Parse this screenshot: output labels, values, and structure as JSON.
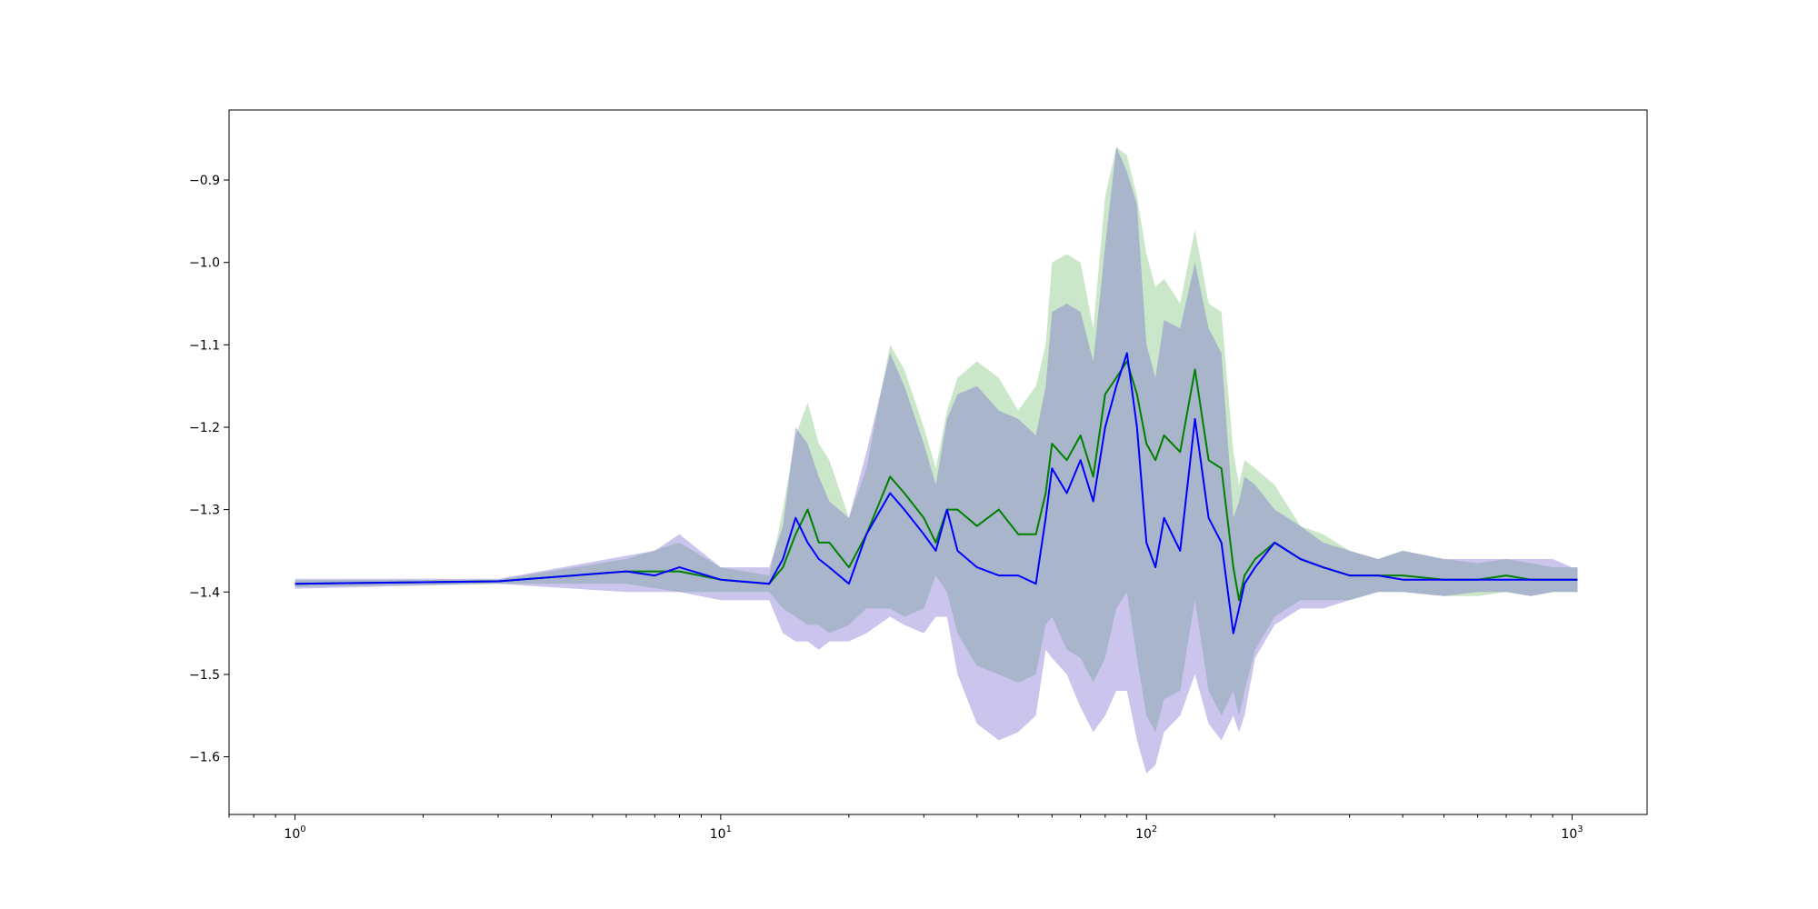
{
  "chart_data": {
    "type": "line",
    "title": "",
    "xlabel": "",
    "ylabel": "",
    "x_scale": "log",
    "xlim": [
      0.7,
      1500
    ],
    "ylim": [
      -1.67,
      -0.815
    ],
    "grid": false,
    "legend": "none",
    "x_ticks": [
      {
        "value": 1,
        "base": "10",
        "exp": "0"
      },
      {
        "value": 10,
        "base": "10",
        "exp": "1"
      },
      {
        "value": 100,
        "base": "10",
        "exp": "2"
      },
      {
        "value": 1000,
        "base": "10",
        "exp": "3"
      }
    ],
    "y_ticks": [
      {
        "value": -0.9,
        "label": "−0.9"
      },
      {
        "value": -1.0,
        "label": "−1.0"
      },
      {
        "value": -1.1,
        "label": "−1.1"
      },
      {
        "value": -1.2,
        "label": "−1.2"
      },
      {
        "value": -1.3,
        "label": "−1.3"
      },
      {
        "value": -1.4,
        "label": "−1.4"
      },
      {
        "value": -1.5,
        "label": "−1.5"
      },
      {
        "value": -1.6,
        "label": "−1.6"
      }
    ],
    "series": [
      {
        "key": "green",
        "color": "#008000",
        "band_color": "#2ca02c",
        "band_opacity": 0.25,
        "x": [
          1,
          3,
          6,
          8,
          10,
          13,
          14,
          15,
          16,
          17,
          18,
          20,
          22,
          25,
          27,
          30,
          32,
          34,
          36,
          40,
          45,
          50,
          55,
          58,
          60,
          65,
          70,
          75,
          80,
          85,
          90,
          95,
          100,
          105,
          110,
          120,
          130,
          140,
          150,
          160,
          165,
          170,
          180,
          200,
          230,
          260,
          300,
          350,
          400,
          500,
          600,
          700,
          800,
          900,
          1000,
          1030
        ],
        "mean": [
          -1.39,
          -1.387,
          -1.375,
          -1.375,
          -1.385,
          -1.39,
          -1.37,
          -1.33,
          -1.3,
          -1.34,
          -1.34,
          -1.37,
          -1.33,
          -1.26,
          -1.28,
          -1.31,
          -1.34,
          -1.3,
          -1.3,
          -1.32,
          -1.3,
          -1.33,
          -1.33,
          -1.28,
          -1.22,
          -1.24,
          -1.21,
          -1.26,
          -1.16,
          -1.14,
          -1.12,
          -1.16,
          -1.22,
          -1.24,
          -1.21,
          -1.23,
          -1.13,
          -1.24,
          -1.25,
          -1.37,
          -1.41,
          -1.38,
          -1.36,
          -1.34,
          -1.36,
          -1.37,
          -1.38,
          -1.38,
          -1.38,
          -1.385,
          -1.385,
          -1.38,
          -1.385,
          -1.385,
          -1.385,
          -1.385
        ],
        "upper": [
          -1.386,
          -1.385,
          -1.36,
          -1.34,
          -1.37,
          -1.38,
          -1.3,
          -1.21,
          -1.17,
          -1.22,
          -1.24,
          -1.31,
          -1.25,
          -1.1,
          -1.13,
          -1.2,
          -1.25,
          -1.18,
          -1.14,
          -1.12,
          -1.14,
          -1.18,
          -1.15,
          -1.1,
          -1.0,
          -0.99,
          -1.0,
          -1.08,
          -0.92,
          -0.86,
          -0.87,
          -0.92,
          -0.99,
          -1.03,
          -1.02,
          -1.05,
          -0.96,
          -1.05,
          -1.06,
          -1.23,
          -1.27,
          -1.24,
          -1.25,
          -1.27,
          -1.32,
          -1.33,
          -1.35,
          -1.36,
          -1.35,
          -1.36,
          -1.365,
          -1.36,
          -1.365,
          -1.37,
          -1.37,
          -1.37
        ],
        "lower": [
          -1.394,
          -1.39,
          -1.39,
          -1.4,
          -1.4,
          -1.4,
          -1.42,
          -1.43,
          -1.44,
          -1.44,
          -1.45,
          -1.44,
          -1.42,
          -1.42,
          -1.43,
          -1.42,
          -1.38,
          -1.4,
          -1.45,
          -1.49,
          -1.5,
          -1.51,
          -1.5,
          -1.44,
          -1.43,
          -1.47,
          -1.48,
          -1.51,
          -1.48,
          -1.42,
          -1.4,
          -1.48,
          -1.55,
          -1.57,
          -1.53,
          -1.52,
          -1.41,
          -1.52,
          -1.55,
          -1.52,
          -1.55,
          -1.52,
          -1.47,
          -1.43,
          -1.41,
          -1.41,
          -1.41,
          -1.4,
          -1.4,
          -1.405,
          -1.405,
          -1.4,
          -1.405,
          -1.4,
          -1.4,
          -1.4
        ]
      },
      {
        "key": "blue",
        "color": "#0000ff",
        "band_color": "#6a5acd",
        "band_opacity": 0.35,
        "x": [
          1,
          3,
          6,
          7,
          8,
          10,
          13,
          14,
          15,
          16,
          17,
          18,
          20,
          22,
          25,
          27,
          30,
          32,
          34,
          36,
          40,
          45,
          50,
          55,
          58,
          60,
          65,
          70,
          75,
          80,
          85,
          90,
          95,
          100,
          105,
          110,
          120,
          130,
          140,
          150,
          160,
          165,
          170,
          180,
          200,
          230,
          260,
          300,
          350,
          400,
          500,
          600,
          700,
          800,
          900,
          1000,
          1030
        ],
        "mean": [
          -1.39,
          -1.387,
          -1.375,
          -1.38,
          -1.37,
          -1.385,
          -1.39,
          -1.36,
          -1.31,
          -1.34,
          -1.36,
          -1.37,
          -1.39,
          -1.33,
          -1.28,
          -1.3,
          -1.33,
          -1.35,
          -1.3,
          -1.35,
          -1.37,
          -1.38,
          -1.38,
          -1.39,
          -1.31,
          -1.25,
          -1.28,
          -1.24,
          -1.29,
          -1.2,
          -1.15,
          -1.11,
          -1.2,
          -1.34,
          -1.37,
          -1.31,
          -1.35,
          -1.19,
          -1.31,
          -1.34,
          -1.45,
          -1.42,
          -1.39,
          -1.37,
          -1.34,
          -1.36,
          -1.37,
          -1.38,
          -1.38,
          -1.385,
          -1.385,
          -1.385,
          -1.385,
          -1.385,
          -1.385,
          -1.385,
          -1.385
        ],
        "upper": [
          -1.384,
          -1.384,
          -1.356,
          -1.35,
          -1.33,
          -1.37,
          -1.37,
          -1.32,
          -1.2,
          -1.22,
          -1.26,
          -1.29,
          -1.31,
          -1.23,
          -1.11,
          -1.15,
          -1.22,
          -1.27,
          -1.19,
          -1.16,
          -1.15,
          -1.18,
          -1.19,
          -1.21,
          -1.15,
          -1.06,
          -1.05,
          -1.06,
          -1.12,
          -0.98,
          -0.86,
          -0.89,
          -0.93,
          -1.1,
          -1.14,
          -1.07,
          -1.08,
          -1.0,
          -1.08,
          -1.11,
          -1.31,
          -1.29,
          -1.26,
          -1.27,
          -1.3,
          -1.32,
          -1.34,
          -1.35,
          -1.36,
          -1.35,
          -1.36,
          -1.36,
          -1.36,
          -1.36,
          -1.36,
          -1.37,
          -1.37
        ],
        "lower": [
          -1.396,
          -1.39,
          -1.4,
          -1.4,
          -1.4,
          -1.41,
          -1.41,
          -1.45,
          -1.46,
          -1.46,
          -1.47,
          -1.46,
          -1.46,
          -1.45,
          -1.43,
          -1.44,
          -1.45,
          -1.43,
          -1.43,
          -1.5,
          -1.56,
          -1.58,
          -1.57,
          -1.55,
          -1.47,
          -1.48,
          -1.5,
          -1.54,
          -1.57,
          -1.55,
          -1.52,
          -1.52,
          -1.58,
          -1.62,
          -1.61,
          -1.57,
          -1.55,
          -1.5,
          -1.56,
          -1.58,
          -1.55,
          -1.57,
          -1.55,
          -1.48,
          -1.44,
          -1.42,
          -1.42,
          -1.41,
          -1.4,
          -1.4,
          -1.405,
          -1.4,
          -1.4,
          -1.405,
          -1.4,
          -1.4,
          -1.4
        ]
      }
    ]
  }
}
